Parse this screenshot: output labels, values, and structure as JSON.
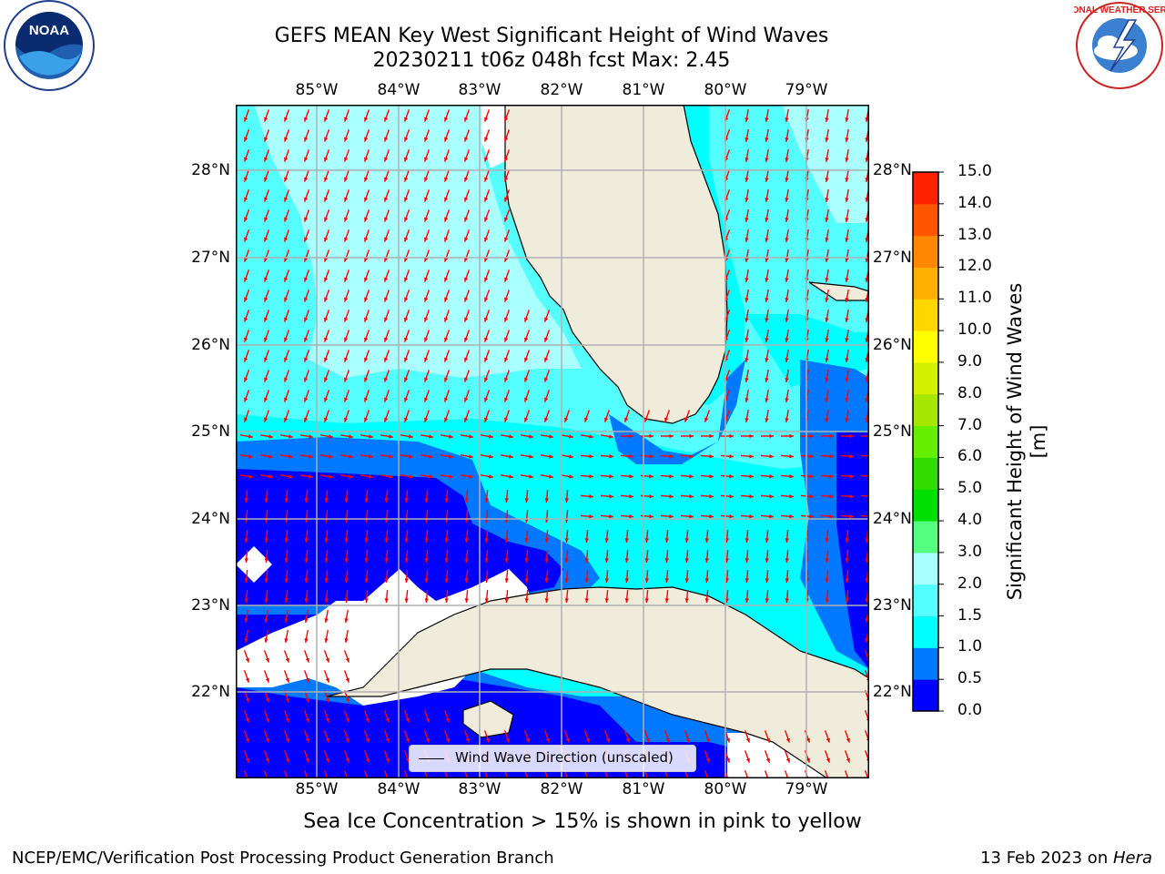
{
  "header": {
    "title_line1": "GEFS MEAN Key West Significant Height of Wind Waves",
    "title_line2": "20230211 t06z 048h fcst   Max: 2.45"
  },
  "logos": {
    "left": "NOAA",
    "right": "NATIONAL WEATHER SERVICE"
  },
  "map": {
    "lon_labels": [
      "85°W",
      "84°W",
      "83°W",
      "82°W",
      "81°W",
      "80°W",
      "79°W"
    ],
    "lat_labels": [
      "28°N",
      "27°N",
      "26°N",
      "25°N",
      "24°N",
      "23°N",
      "22°N"
    ],
    "legend_label": "Wind Wave Direction (unscaled)",
    "land_color": "#efecdc",
    "arrow_color": "#ff0000",
    "grid_color": "#b0b0b0"
  },
  "colorbar": {
    "title": "Significant Height of Wind Waves [m]",
    "levels": [
      "0.0",
      "0.5",
      "1.0",
      "1.5",
      "2.0",
      "3.0",
      "4.0",
      "5.0",
      "6.0",
      "7.0",
      "8.0",
      "9.0",
      "10.0",
      "11.0",
      "12.0",
      "13.0",
      "14.0",
      "15.0"
    ],
    "colors": [
      "#0000ff",
      "#0078ff",
      "#00ffff",
      "#55ffff",
      "#aaffff",
      "#55ff80",
      "#00e000",
      "#33dd00",
      "#66ee00",
      "#a6e600",
      "#d4ef00",
      "#ffff00",
      "#ffd700",
      "#ffb000",
      "#ff8800",
      "#ff5500",
      "#ff2200"
    ]
  },
  "footer": {
    "subtitle": "Sea Ice Concentration > 15% is shown in pink to yellow",
    "left": "NCEP/EMC/Verification Post Processing Product Generation Branch",
    "right_date": "13 Feb 2023 on ",
    "right_host": "Hera"
  }
}
